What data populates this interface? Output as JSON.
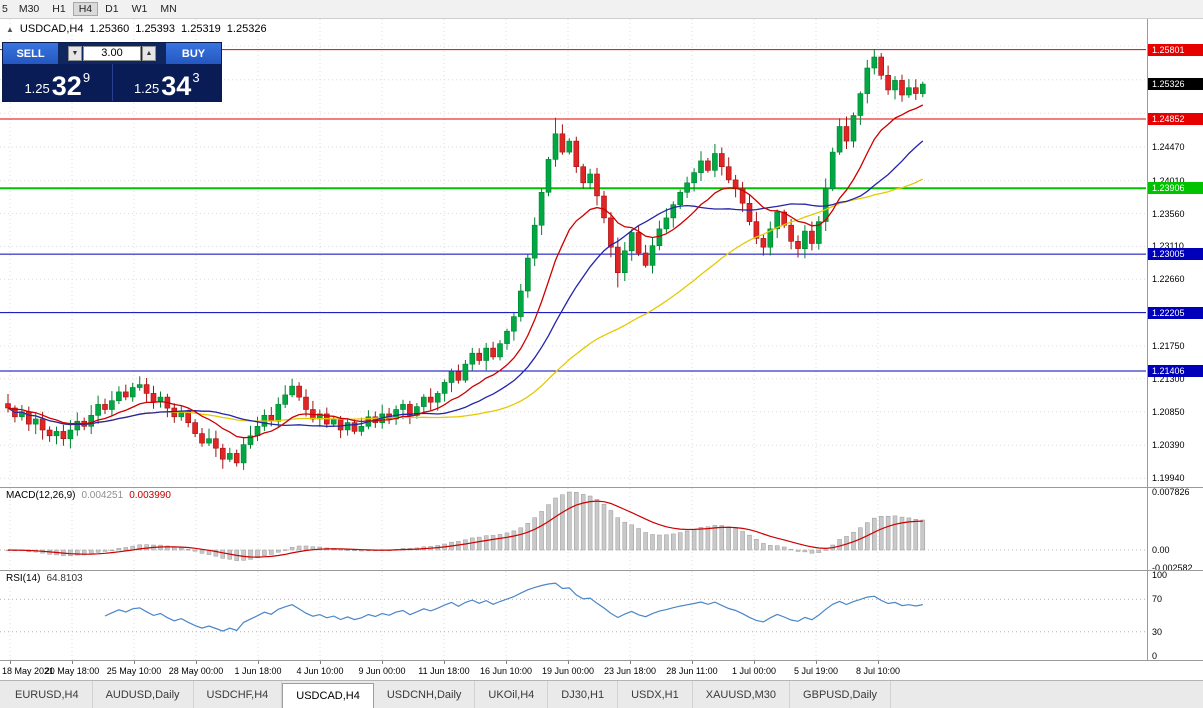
{
  "toolbar": {
    "partial": "5",
    "timeframes": [
      "M30",
      "H1",
      "H4",
      "D1",
      "W1",
      "MN"
    ],
    "active": "H4"
  },
  "chart": {
    "title": {
      "marker": "▲",
      "symbol": "USDCAD,H4",
      "open": "1.25360",
      "high": "1.25393",
      "low": "1.25319",
      "close": "1.25326"
    },
    "trade": {
      "sell_label": "SELL",
      "buy_label": "BUY",
      "volume": "3.00",
      "spin_down": "▼",
      "spin_up": "▲",
      "sell": {
        "prefix": "1.25",
        "pips": "32",
        "point": "9"
      },
      "buy": {
        "prefix": "1.25",
        "pips": "34",
        "point": "3"
      }
    },
    "scale": {
      "top": 1.2622,
      "bottom": 1.1982
    },
    "grid_prices": [
      1.2585,
      1.2539,
      1.2493,
      1.2447,
      1.2401,
      1.2356,
      1.2311,
      1.2266,
      1.2221,
      1.2175,
      1.213,
      1.2085,
      1.2039,
      1.1994
    ],
    "plain_ticks": [
      {
        "label": "1.24470",
        "price": 1.2447
      },
      {
        "label": "1.24010",
        "price": 1.2401
      },
      {
        "label": "1.23560",
        "price": 1.2356
      },
      {
        "label": "1.23110",
        "price": 1.2311
      },
      {
        "label": "1.22660",
        "price": 1.2266
      },
      {
        "label": "1.21750",
        "price": 1.2175
      },
      {
        "label": "1.21300",
        "price": 1.213
      },
      {
        "label": "1.20850",
        "price": 1.2085
      },
      {
        "label": "1.20390",
        "price": 1.2039
      },
      {
        "label": "1.19940",
        "price": 1.1994
      }
    ],
    "levels": [
      {
        "label": "1.25801",
        "price": 1.25801,
        "color": "#e60000",
        "lw": 1
      },
      {
        "label": "1.24852",
        "price": 1.24852,
        "color": "#e60000",
        "lw": 1
      },
      {
        "label": "1.23906",
        "price": 1.23906,
        "color": "#00c300",
        "lw": 2
      },
      {
        "label": "1.23005",
        "price": 1.23005,
        "color": "#0000bb",
        "lw": 1
      },
      {
        "label": "1.22205",
        "price": 1.22205,
        "color": "#0000bb",
        "lw": 1
      },
      {
        "label": "1.21406",
        "price": 1.21406,
        "color": "#0000bb",
        "lw": 1
      }
    ],
    "current": {
      "label": "1.25326",
      "price": 1.25326,
      "bg": "#000000"
    },
    "colors": {
      "up": "#00a843",
      "up_stroke": "#00802f",
      "down": "#e12525",
      "down_stroke": "#a01111",
      "ma_red": "#cc0000",
      "ma_blue": "#2424a8",
      "ma_yellow": "#e3ca00",
      "grid": "#dcdcdc"
    }
  },
  "macd": {
    "name": "MACD(12,26,9)",
    "value_main": "0.004251",
    "value_signal": "0.003990",
    "axis_max": "0.007826",
    "axis_zero": "0.00",
    "axis_min": "-0.002582",
    "max": 0.007826,
    "colors": {
      "hist": "#c9c9c9",
      "hist_stroke": "#9a9a9a",
      "signal": "#cc0000"
    }
  },
  "rsi": {
    "name": "RSI(14)",
    "value": "64.8103",
    "axis": [
      "100",
      "70",
      "30",
      "0"
    ],
    "levels": [
      70,
      30
    ],
    "color": "#4a86c8"
  },
  "time_axis": {
    "labels": [
      "18 May 2021",
      "20 May 18:00",
      "25 May 10:00",
      "28 May 00:00",
      "1 Jun 18:00",
      "4 Jun 10:00",
      "9 Jun 00:00",
      "11 Jun 18:00",
      "16 Jun 10:00",
      "19 Jun 00:00",
      "23 Jun 18:00",
      "28 Jun 11:00",
      "1 Jul 00:00",
      "5 Jul 19:00",
      "8 Jul 10:00"
    ]
  },
  "tabs": {
    "items": [
      "EURUSD,H4",
      "AUDUSD,Daily",
      "USDCHF,H4",
      "USDCAD,H4",
      "USDCNH,Daily",
      "UKOil,H4",
      "DJ30,H1",
      "USDX,H1",
      "XAUUSD,M30",
      "GBPUSD,Daily"
    ],
    "active_index": 3
  },
  "chart_data": {
    "type": "candlestick",
    "symbol": "USDCAD",
    "timeframe": "H4",
    "x_labels": [
      "18 May 2021",
      "20 May 18:00",
      "25 May 10:00",
      "28 May 00:00",
      "1 Jun 18:00",
      "4 Jun 10:00",
      "9 Jun 00:00",
      "11 Jun 18:00",
      "16 Jun 10:00",
      "19 Jun 00:00",
      "23 Jun 18:00",
      "28 Jun 11:00",
      "1 Jul 00:00",
      "5 Jul 19:00",
      "8 Jul 10:00"
    ],
    "ylim": [
      1.1982,
      1.2622
    ],
    "ohlc_display": {
      "open": 1.2536,
      "high": 1.25393,
      "low": 1.25319,
      "close": 1.25326
    },
    "levels": [
      1.25801,
      1.24852,
      1.23906,
      1.23005,
      1.22205,
      1.21406
    ],
    "macd_display": {
      "main": 0.004251,
      "signal": 0.00399,
      "axis_max": 0.007826,
      "axis_min": -0.002582
    },
    "rsi_display": 64.8103,
    "ma": {
      "red_ema": 13,
      "blue_sma": 21,
      "yellow_sma": 45
    },
    "closes": [
      1.209,
      1.2078,
      1.2085,
      1.2068,
      1.2075,
      1.206,
      1.2052,
      1.2058,
      1.2048,
      1.206,
      1.2072,
      1.2065,
      1.208,
      1.2095,
      1.2088,
      1.21,
      1.2112,
      1.2105,
      1.2118,
      1.2122,
      1.211,
      1.2098,
      1.2105,
      1.209,
      1.2078,
      1.2085,
      1.207,
      1.2055,
      1.2042,
      1.2048,
      1.2035,
      1.202,
      1.2028,
      1.2015,
      1.204,
      1.2052,
      1.2065,
      1.208,
      1.2072,
      1.2095,
      1.2108,
      1.212,
      1.2105,
      1.2088,
      1.2075,
      1.2082,
      1.2068,
      1.2075,
      1.206,
      1.207,
      1.2058,
      1.2065,
      1.2078,
      1.207,
      1.2082,
      1.2075,
      1.2088,
      1.2095,
      1.208,
      1.2092,
      1.2105,
      1.2098,
      1.211,
      1.2125,
      1.214,
      1.2128,
      1.215,
      1.2165,
      1.2155,
      1.2172,
      1.216,
      1.2178,
      1.2195,
      1.2215,
      1.225,
      1.2295,
      1.234,
      1.2385,
      1.243,
      1.2465,
      1.244,
      1.2455,
      1.242,
      1.2398,
      1.241,
      1.238,
      1.235,
      1.231,
      1.2275,
      1.2305,
      1.233,
      1.2302,
      1.2285,
      1.2312,
      1.2335,
      1.235,
      1.2368,
      1.2385,
      1.2398,
      1.2412,
      1.2428,
      1.2415,
      1.2438,
      1.242,
      1.2402,
      1.239,
      1.237,
      1.2345,
      1.2322,
      1.231,
      1.2335,
      1.2358,
      1.234,
      1.2318,
      1.2308,
      1.2332,
      1.2315,
      1.2345,
      1.239,
      1.244,
      1.2475,
      1.2455,
      1.249,
      1.252,
      1.2555,
      1.257,
      1.2545,
      1.2525,
      1.2538,
      1.2518,
      1.2528,
      1.252,
      1.2533
    ],
    "extremes": [
      {
        "i": 31,
        "low": 1.2007
      },
      {
        "i": 33,
        "low": 1.201
      },
      {
        "i": 41,
        "high": 1.213
      },
      {
        "i": 79,
        "high": 1.2487
      },
      {
        "i": 80,
        "high": 1.2478
      },
      {
        "i": 88,
        "low": 1.2255
      },
      {
        "i": 102,
        "high": 1.2451
      },
      {
        "i": 109,
        "low": 1.2304
      },
      {
        "i": 114,
        "low": 1.2303
      },
      {
        "i": 125,
        "high": 1.2581
      }
    ]
  }
}
